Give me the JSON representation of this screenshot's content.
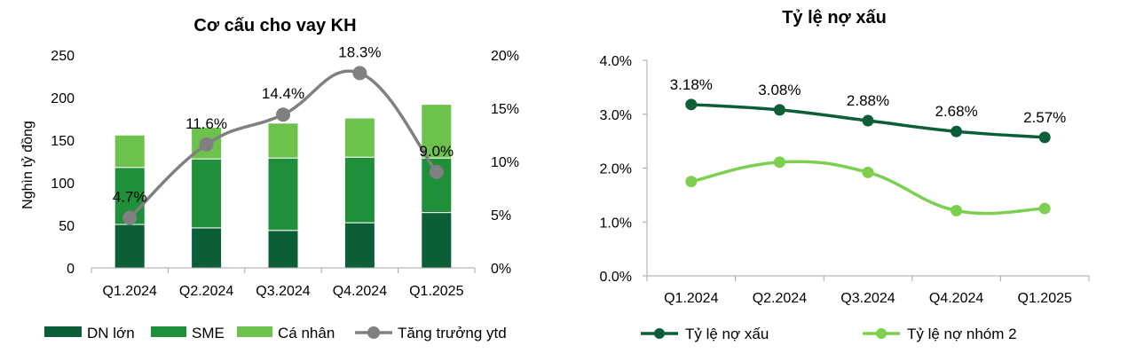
{
  "chart_data": [
    {
      "type": "bar",
      "stacked": true,
      "title": "Cơ cấu cho vay KH",
      "ylabel": "Nghìn tỷ đồng",
      "categories": [
        "Q1.2024",
        "Q2.2024",
        "Q3.2024",
        "Q4.2024",
        "Q1.2025"
      ],
      "ylim": [
        0,
        250
      ],
      "yticks": [
        "0",
        "50",
        "100",
        "150",
        "200",
        "250"
      ],
      "y2lim": [
        0,
        20
      ],
      "y2ticks": [
        "0%",
        "5%",
        "10%",
        "15%",
        "20%"
      ],
      "series": [
        {
          "name": "DN lớn",
          "values": [
            51,
            47,
            44,
            53,
            65
          ],
          "color": "#0b5e36"
        },
        {
          "name": "SME",
          "values": [
            67,
            81,
            85,
            77,
            64
          ],
          "color": "#1f8f3a"
        },
        {
          "name": "Cá nhân",
          "values": [
            38,
            37,
            41,
            46,
            63
          ],
          "color": "#6cc24a"
        }
      ],
      "line_series": {
        "name": "Tăng trưởng ytd",
        "values": [
          4.7,
          11.6,
          14.4,
          18.3,
          9.0
        ],
        "labels": [
          "4.7%",
          "11.6%",
          "14.4%",
          "18.3%",
          "9.0%"
        ],
        "axis": "right",
        "color": "#808080"
      },
      "legend_position": "bottom"
    },
    {
      "type": "line",
      "title": "Tỷ lệ nợ xấu",
      "categories": [
        "Q1.2024",
        "Q2.2024",
        "Q3.2024",
        "Q4.2024",
        "Q1.2025"
      ],
      "ylim": [
        0,
        4
      ],
      "yticks": [
        "0.0%",
        "1.0%",
        "2.0%",
        "3.0%",
        "4.0%"
      ],
      "series": [
        {
          "name": "Tỷ lệ nợ xấu",
          "values": [
            3.18,
            3.08,
            2.88,
            2.68,
            2.57
          ],
          "labels": [
            "3.18%",
            "3.08%",
            "2.88%",
            "2.68%",
            "2.57%"
          ],
          "color": "#0b5e36"
        },
        {
          "name": "Tỷ lệ nợ nhóm 2",
          "values": [
            1.75,
            2.11,
            1.92,
            1.21,
            1.25
          ],
          "color": "#7ccf4f"
        }
      ],
      "legend_position": "bottom"
    }
  ]
}
